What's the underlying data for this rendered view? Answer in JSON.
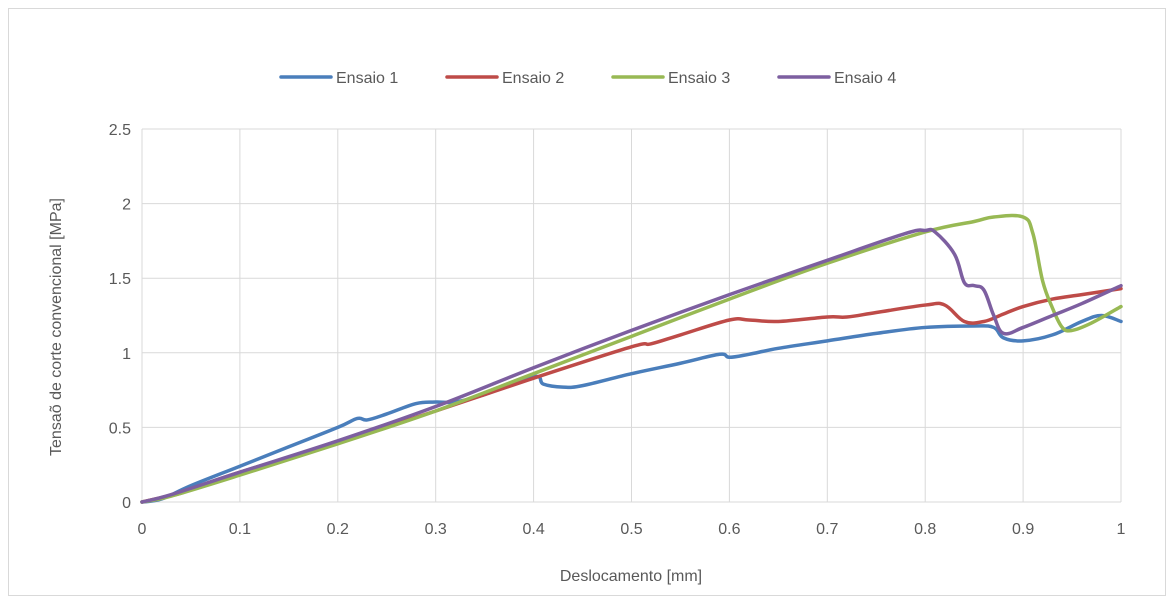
{
  "chart_data": {
    "type": "line",
    "title": "",
    "xlabel": "Deslocamento [mm]",
    "ylabel": "Tensaõ de corte convencional [MPa]",
    "xlim": [
      0,
      1
    ],
    "ylim": [
      0,
      2.5
    ],
    "xticks": [
      "0",
      "0.1",
      "0.2",
      "0.3",
      "0.4",
      "0.5",
      "0.6",
      "0.7",
      "0.8",
      "0.9",
      "1"
    ],
    "yticks": [
      "0",
      "0.5",
      "1",
      "1.5",
      "2",
      "2.5"
    ],
    "grid": true,
    "legend_position": "top",
    "series": [
      {
        "name": "Ensaio 1",
        "color": "#4a7ebb",
        "points": [
          [
            0,
            0
          ],
          [
            0.02,
            0.02
          ],
          [
            0.05,
            0.11
          ],
          [
            0.1,
            0.24
          ],
          [
            0.15,
            0.37
          ],
          [
            0.2,
            0.5
          ],
          [
            0.22,
            0.56
          ],
          [
            0.23,
            0.55
          ],
          [
            0.25,
            0.59
          ],
          [
            0.28,
            0.66
          ],
          [
            0.3,
            0.67
          ],
          [
            0.32,
            0.67
          ],
          [
            0.35,
            0.72
          ],
          [
            0.4,
            0.84
          ],
          [
            0.41,
            0.79
          ],
          [
            0.43,
            0.77
          ],
          [
            0.45,
            0.78
          ],
          [
            0.5,
            0.86
          ],
          [
            0.55,
            0.93
          ],
          [
            0.59,
            0.99
          ],
          [
            0.6,
            0.97
          ],
          [
            0.62,
            0.99
          ],
          [
            0.65,
            1.03
          ],
          [
            0.7,
            1.08
          ],
          [
            0.75,
            1.13
          ],
          [
            0.8,
            1.17
          ],
          [
            0.85,
            1.18
          ],
          [
            0.87,
            1.17
          ],
          [
            0.88,
            1.1
          ],
          [
            0.9,
            1.08
          ],
          [
            0.93,
            1.12
          ],
          [
            0.96,
            1.21
          ],
          [
            0.98,
            1.25
          ],
          [
            1.0,
            1.21
          ]
        ]
      },
      {
        "name": "Ensaio 2",
        "color": "#be4b48",
        "points": [
          [
            0,
            0
          ],
          [
            0.02,
            0.03
          ],
          [
            0.04,
            0.06
          ],
          [
            0.06,
            0.11
          ],
          [
            0.1,
            0.2
          ],
          [
            0.2,
            0.4
          ],
          [
            0.3,
            0.61
          ],
          [
            0.4,
            0.83
          ],
          [
            0.5,
            1.04
          ],
          [
            0.52,
            1.06
          ],
          [
            0.55,
            1.12
          ],
          [
            0.6,
            1.22
          ],
          [
            0.62,
            1.22
          ],
          [
            0.65,
            1.21
          ],
          [
            0.7,
            1.24
          ],
          [
            0.72,
            1.24
          ],
          [
            0.75,
            1.27
          ],
          [
            0.8,
            1.32
          ],
          [
            0.82,
            1.32
          ],
          [
            0.84,
            1.21
          ],
          [
            0.86,
            1.21
          ],
          [
            0.88,
            1.26
          ],
          [
            0.9,
            1.31
          ],
          [
            0.93,
            1.36
          ],
          [
            0.96,
            1.39
          ],
          [
            1.0,
            1.43
          ]
        ]
      },
      {
        "name": "Ensaio 3",
        "color": "#98b954",
        "points": [
          [
            0,
            0
          ],
          [
            0.03,
            0.04
          ],
          [
            0.1,
            0.18
          ],
          [
            0.2,
            0.39
          ],
          [
            0.3,
            0.61
          ],
          [
            0.4,
            0.86
          ],
          [
            0.5,
            1.11
          ],
          [
            0.6,
            1.36
          ],
          [
            0.7,
            1.6
          ],
          [
            0.8,
            1.81
          ],
          [
            0.85,
            1.88
          ],
          [
            0.87,
            1.91
          ],
          [
            0.9,
            1.91
          ],
          [
            0.91,
            1.8
          ],
          [
            0.92,
            1.48
          ],
          [
            0.93,
            1.3
          ],
          [
            0.94,
            1.17
          ],
          [
            0.95,
            1.15
          ],
          [
            0.97,
            1.2
          ],
          [
            1.0,
            1.31
          ]
        ]
      },
      {
        "name": "Ensaio 4",
        "color": "#7d5fa0",
        "points": [
          [
            0,
            0
          ],
          [
            0.03,
            0.05
          ],
          [
            0.1,
            0.2
          ],
          [
            0.2,
            0.41
          ],
          [
            0.3,
            0.64
          ],
          [
            0.4,
            0.9
          ],
          [
            0.5,
            1.15
          ],
          [
            0.6,
            1.39
          ],
          [
            0.7,
            1.62
          ],
          [
            0.78,
            1.8
          ],
          [
            0.8,
            1.82
          ],
          [
            0.81,
            1.81
          ],
          [
            0.83,
            1.66
          ],
          [
            0.84,
            1.47
          ],
          [
            0.85,
            1.45
          ],
          [
            0.86,
            1.42
          ],
          [
            0.87,
            1.25
          ],
          [
            0.88,
            1.13
          ],
          [
            0.9,
            1.17
          ],
          [
            0.93,
            1.25
          ],
          [
            0.96,
            1.33
          ],
          [
            1.0,
            1.45
          ]
        ]
      }
    ]
  }
}
